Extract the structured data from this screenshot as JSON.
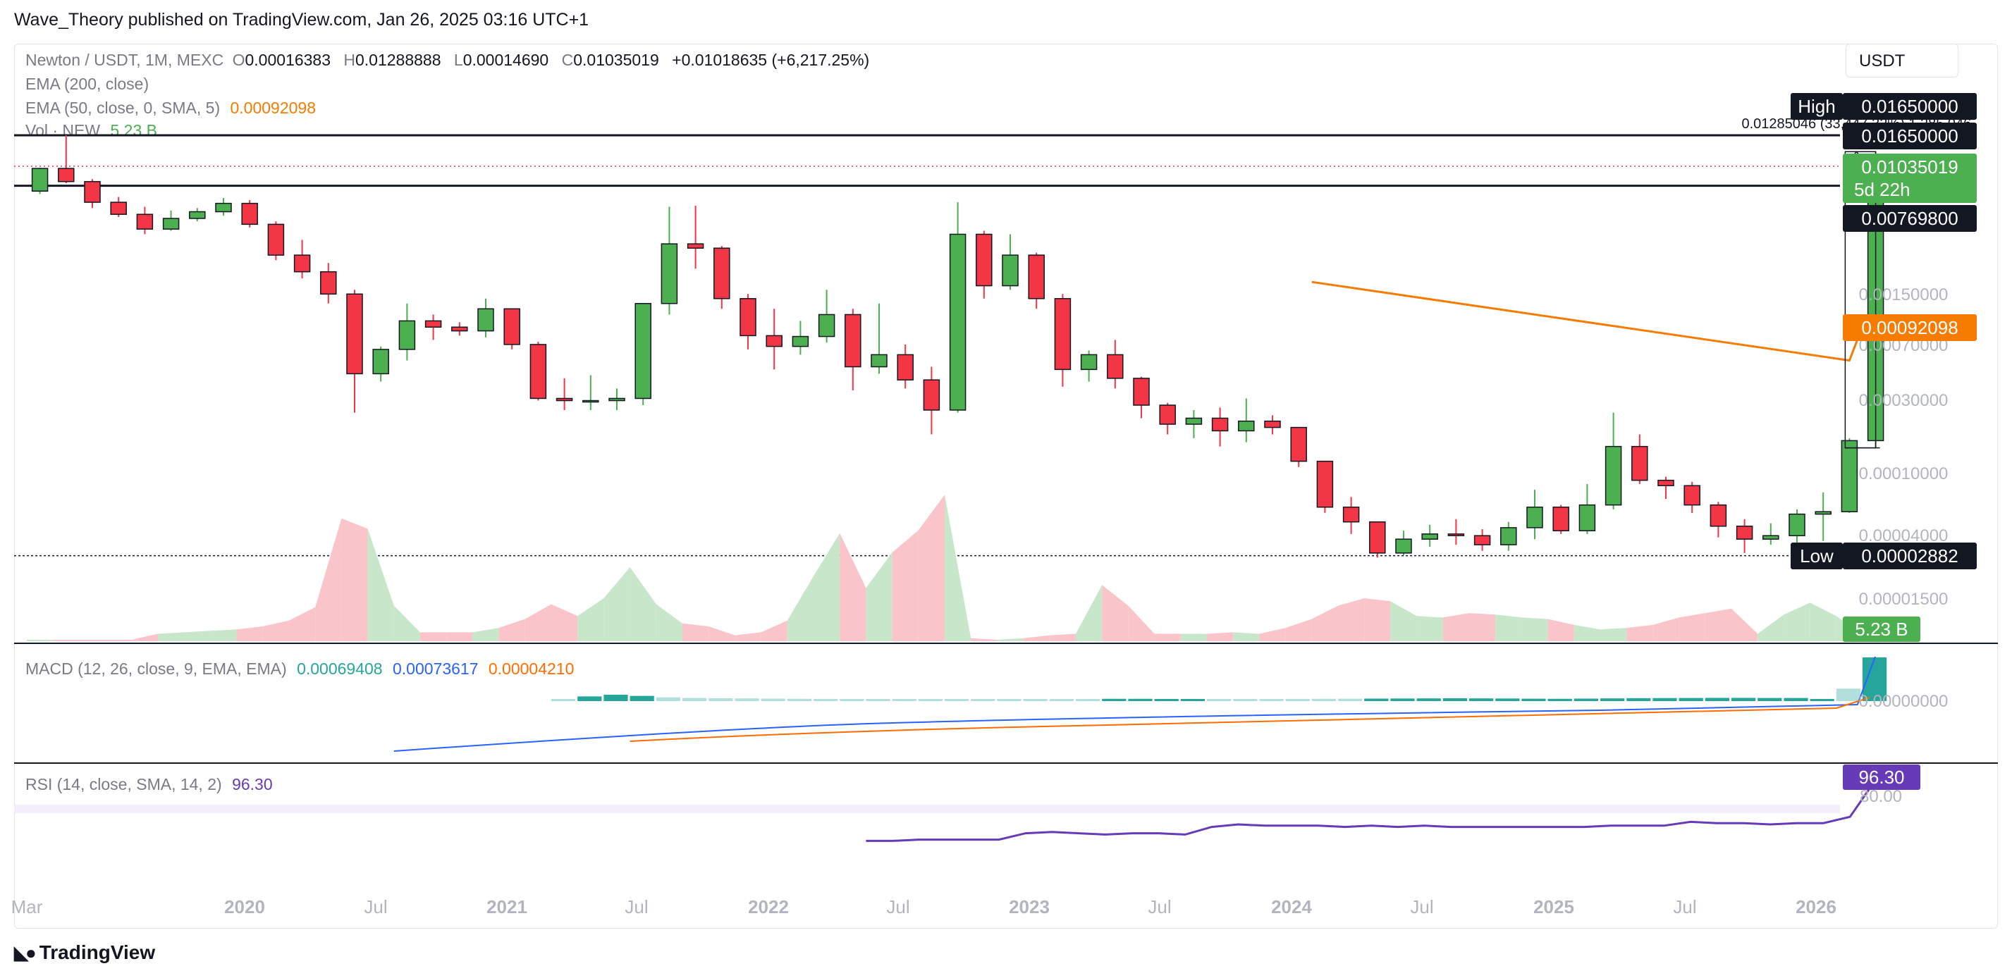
{
  "header": {
    "publisher": "Wave_Theory published on TradingView.com, Jan 26, 2025 03:16 UTC+1",
    "currency": "USDT"
  },
  "legend": {
    "symbol": "Newton / USDT, 1M, MEXC",
    "open_label": "O",
    "open": "0.00016383",
    "high_label": "H",
    "high": "0.01288888",
    "low_label": "L",
    "low": "0.00014690",
    "close_label": "C",
    "close": "0.01035019",
    "change": "+0.01018635 (+6,217.25%)",
    "ema200": "EMA (200, close)",
    "ema50": "EMA (50, close, 0, SMA, 5)",
    "ema50_value": "0.00092098",
    "vol_label": "Vol · NEW",
    "vol_value": "5.23 B"
  },
  "measure_label": "0.01285046 (33,447.32%) 1,285,046",
  "price_axis": {
    "ticks": [
      "0.01650000",
      "0.00150000",
      "0.00070000",
      "0.00030000",
      "0.00010000",
      "0.00004000",
      "0.00001500"
    ],
    "high_tag": "High",
    "high_value": "0.01650000",
    "level_1": "0.01650000",
    "last_price": "0.01035019",
    "countdown": "5d 22h",
    "level_2": "0.00769800",
    "ema_tag": "0.00092098",
    "low_tag": "Low",
    "low_value": "0.00002882",
    "volume_tag": "5.23 B"
  },
  "macd": {
    "label": "MACD (12, 26, close, 9, EMA, EMA)",
    "v1": "0.00069408",
    "v2": "0.00073617",
    "v3": "0.00004210",
    "axis_tick": "0.00000000"
  },
  "rsi": {
    "label": "RSI (14, close, SMA, 14, 2)",
    "value": "96.30",
    "axis_tick": "80.00",
    "tag": "96.30"
  },
  "time_axis": [
    "Mar",
    "2020",
    "Jul",
    "2021",
    "Jul",
    "2022",
    "Jul",
    "2023",
    "Jul",
    "2024",
    "Jul",
    "2025",
    "Jul",
    "2026"
  ],
  "branding": "TradingView",
  "colors": {
    "up": "#4caf50",
    "down": "#f23645",
    "ema50": "#f57c00",
    "macd": "#2962ff",
    "signal": "#ff6d00",
    "rsi": "#673ab7",
    "hist": "#26a69a",
    "hist_light": "#b2dfdb"
  },
  "chart_data": {
    "type": "candlestick",
    "scale": "log",
    "timeframe": "1M",
    "start": "2019-03",
    "ohlc": [
      [
        0.0071,
        0.01,
        0.0068,
        0.0101
      ],
      [
        0.01,
        0.0082,
        0.0165,
        0.008
      ],
      [
        0.0082,
        0.006,
        0.0085,
        0.0055
      ],
      [
        0.006,
        0.005,
        0.0065,
        0.0048
      ],
      [
        0.005,
        0.004,
        0.0056,
        0.0037
      ],
      [
        0.004,
        0.0047,
        0.0053,
        0.0039
      ],
      [
        0.0047,
        0.0052,
        0.0055,
        0.0045
      ],
      [
        0.0052,
        0.0059,
        0.0064,
        0.0049
      ],
      [
        0.0059,
        0.0043,
        0.0062,
        0.0041
      ],
      [
        0.0043,
        0.0027,
        0.0045,
        0.0025
      ],
      [
        0.0027,
        0.0021,
        0.0034,
        0.0019
      ],
      [
        0.0021,
        0.0015,
        0.0024,
        0.0013
      ],
      [
        0.0015,
        0.00045,
        0.0016,
        0.00025
      ],
      [
        0.00045,
        0.00065,
        0.00068,
        0.0004
      ],
      [
        0.00065,
        0.001,
        0.0013,
        0.00055
      ],
      [
        0.001,
        0.00091,
        0.0011,
        0.00075
      ],
      [
        0.00091,
        0.00086,
        0.00098,
        0.0008
      ],
      [
        0.00086,
        0.0012,
        0.0014,
        0.00078
      ],
      [
        0.0012,
        0.0007,
        0.0012,
        0.00065
      ],
      [
        0.0007,
        0.00031,
        0.00073,
        0.0003
      ],
      [
        0.00031,
        0.0003,
        0.00042,
        0.00026
      ],
      [
        0.0003,
        0.0003,
        0.00044,
        0.00026
      ],
      [
        0.0003,
        0.00031,
        0.00036,
        0.00026
      ],
      [
        0.00031,
        0.0013,
        0.0013,
        0.00028
      ],
      [
        0.0013,
        0.0032,
        0.0056,
        0.0011
      ],
      [
        0.0032,
        0.003,
        0.0057,
        0.0022
      ],
      [
        0.003,
        0.0014,
        0.0031,
        0.0012
      ],
      [
        0.0014,
        0.0008,
        0.0015,
        0.00065
      ],
      [
        0.0008,
        0.00068,
        0.0012,
        0.00048
      ],
      [
        0.00068,
        0.00079,
        0.001,
        0.0006
      ],
      [
        0.00079,
        0.0011,
        0.0016,
        0.00072
      ],
      [
        0.0011,
        0.0005,
        0.0012,
        0.00035
      ],
      [
        0.0005,
        0.0006,
        0.0013,
        0.00045
      ],
      [
        0.0006,
        0.00041,
        0.0007,
        0.00036
      ],
      [
        0.00041,
        0.00026,
        0.0005,
        0.00018
      ],
      [
        0.00026,
        0.0037,
        0.006,
        0.00025
      ],
      [
        0.0037,
        0.0017,
        0.0039,
        0.0014
      ],
      [
        0.0017,
        0.0027,
        0.0037,
        0.0016
      ],
      [
        0.0027,
        0.0014,
        0.0028,
        0.0012
      ],
      [
        0.0014,
        0.00048,
        0.0015,
        0.00037
      ],
      [
        0.00048,
        0.0006,
        0.00064,
        0.0004
      ],
      [
        0.0006,
        0.00042,
        0.00075,
        0.00036
      ],
      [
        0.00042,
        0.00028,
        0.00043,
        0.00023
      ],
      [
        0.00028,
        0.00021,
        0.00029,
        0.00018
      ],
      [
        0.00021,
        0.00023,
        0.00026,
        0.00017
      ],
      [
        0.00023,
        0.00019,
        0.00027,
        0.00015
      ],
      [
        0.00019,
        0.00022,
        0.00031,
        0.00016
      ],
      [
        0.00022,
        0.0002,
        0.00024,
        0.00018
      ],
      [
        0.0002,
        0.00012,
        0.0002,
        0.00011
      ],
      [
        0.00012,
        6e-05,
        0.00012,
        5.5e-05
      ],
      [
        6e-05,
        4.8e-05,
        7e-05,
        4e-05
      ],
      [
        4.8e-05,
        3e-05,
        4.8e-05,
        2.8e-05
      ],
      [
        3e-05,
        3.7e-05,
        4.2e-05,
        2.9e-05
      ],
      [
        3.7e-05,
        4e-05,
        4.6e-05,
        3.3e-05
      ],
      [
        4e-05,
        3.9e-05,
        5e-05,
        3.4e-05
      ],
      [
        3.9e-05,
        3.4e-05,
        4.3e-05,
        3.1e-05
      ],
      [
        3.4e-05,
        4.4e-05,
        4.8e-05,
        3.1e-05
      ],
      [
        4.4e-05,
        6e-05,
        7.8e-05,
        3.7e-05
      ],
      [
        6e-05,
        4.2e-05,
        6.2e-05,
        4e-05
      ],
      [
        4.2e-05,
        6.2e-05,
        8.5e-05,
        4e-05
      ],
      [
        6.2e-05,
        0.00015,
        0.00025,
        5.8e-05
      ],
      [
        0.00015,
        9e-05,
        0.00018,
        8.5e-05
      ],
      [
        9e-05,
        8.3e-05,
        9.5e-05,
        6.8e-05
      ],
      [
        8.3e-05,
        6.2e-05,
        8.8e-05,
        5.5e-05
      ],
      [
        6.2e-05,
        4.5e-05,
        6.5e-05,
        3.8e-05
      ],
      [
        4.5e-05,
        3.7e-05,
        5e-05,
        3e-05
      ],
      [
        3.7e-05,
        3.9e-05,
        4.7e-05,
        3.4e-05
      ],
      [
        3.9e-05,
        5.4e-05,
        5.8e-05,
        3.1e-05
      ],
      [
        5.4e-05,
        5.6e-05,
        7.5e-05,
        3.6e-05
      ],
      [
        5.6e-05,
        0.00016383,
        0.00017,
        5.5e-05
      ],
      [
        0.00016383,
        0.01035019,
        0.01288888,
        0.0001469
      ]
    ],
    "volume_relative": [
      0.01,
      0.01,
      0.01,
      0.01,
      0.01,
      0.05,
      0.06,
      0.07,
      0.08,
      0.1,
      0.14,
      0.23,
      0.83,
      0.76,
      0.24,
      0.06,
      0.06,
      0.06,
      0.09,
      0.15,
      0.25,
      0.17,
      0.29,
      0.5,
      0.25,
      0.12,
      0.1,
      0.04,
      0.06,
      0.14,
      0.44,
      0.73,
      0.36,
      0.6,
      0.75,
      0.99,
      0.02,
      0.01,
      0.02,
      0.04,
      0.05,
      0.38,
      0.24,
      0.05,
      0.05,
      0.05,
      0.06,
      0.05,
      0.09,
      0.15,
      0.24,
      0.29,
      0.27,
      0.17,
      0.16,
      0.19,
      0.18,
      0.16,
      0.15,
      0.11,
      0.08,
      0.09,
      0.11,
      0.16,
      0.19,
      0.22,
      0.05,
      0.18,
      0.26,
      0.17,
      0.04
    ],
    "ema50": {
      "from": "2023-04",
      "to": "2024-12",
      "start": 0.0018,
      "end": 0.00055,
      "last": 0.00092098
    },
    "macd_hist": [
      1.2e-06,
      4.5e-06,
      6.1e-06,
      5e-06,
      3.6e-06,
      3e-06,
      2.8e-06,
      2.6e-06,
      2.4e-06,
      2.2e-06,
      2.1e-06,
      2e-06,
      1.9e-06,
      1.9e-06,
      1.8e-06,
      1.8e-06,
      1.7e-06,
      1.7e-06,
      1.8e-06,
      1.8e-06,
      1.9e-06,
      2.2e-06,
      2.2e-06,
      2e-06,
      2e-06,
      2e-06,
      1.9e-06,
      1.9e-06,
      2.1e-06,
      2.2e-06,
      2.3e-06,
      2.4e-06,
      2.5e-06,
      2.6e-06,
      2.7e-06,
      2.6e-06,
      2.5e-06,
      2.3e-06,
      2.2e-06,
      2.4e-06,
      2.6e-06,
      2.8e-06,
      2.9e-06,
      3e-06,
      3.1e-06,
      3.1e-06,
      3e-06,
      3e-06,
      2e-06,
      1.2e-05,
      4.21e-05
    ],
    "rsi": [
      47,
      47,
      48,
      48,
      48,
      48,
      53,
      54,
      53,
      52,
      53,
      53,
      52,
      58,
      60,
      59,
      59,
      59,
      58,
      59,
      58,
      59,
      58,
      58,
      58,
      58,
      58,
      58,
      59,
      59,
      59,
      62,
      61,
      61,
      60,
      61,
      61,
      66,
      96.3
    ],
    "rsi_band": [
      30,
      70
    ]
  }
}
